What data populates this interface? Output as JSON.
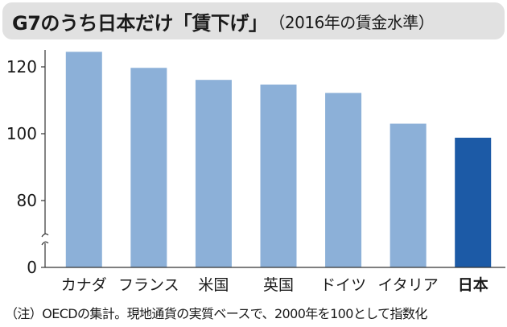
{
  "title": "G7のうち日本だけ「賃下げ」",
  "subtitle": "（2016年の賃金水準）",
  "footnote": "（注）OECDの集計。現地通貨の実質ベースで、2000年を100として指数化",
  "colors": {
    "bar": "#8cb0d8",
    "highlight": "#1c5aa6",
    "axis": "#333333",
    "grid": "#cccccc"
  },
  "chart_data": {
    "type": "bar",
    "categories": [
      "カナダ",
      "フランス",
      "米国",
      "英国",
      "ドイツ",
      "イタリア",
      "日本"
    ],
    "values": [
      124.5,
      119.7,
      116.1,
      114.7,
      112.2,
      103.0,
      98.8
    ],
    "highlight_index": 6,
    "yticks": [
      0,
      80,
      100,
      120
    ],
    "ylim": [
      70,
      126
    ],
    "axis_break": true,
    "grid": false,
    "title": "G7のうち日本だけ「賃下げ」",
    "xlabel": "",
    "ylabel": ""
  }
}
